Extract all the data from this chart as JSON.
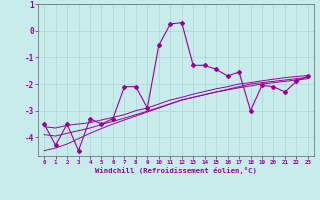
{
  "xlabel": "Windchill (Refroidissement éolien,°C)",
  "background_color": "#c8ecec",
  "grid_color": "#b0d8d8",
  "line_color": "#990099",
  "x_data": [
    0,
    1,
    2,
    3,
    4,
    5,
    6,
    7,
    8,
    9,
    10,
    11,
    12,
    13,
    14,
    15,
    16,
    17,
    18,
    19,
    20,
    21,
    22,
    23
  ],
  "y_main": [
    -3.5,
    -4.3,
    -3.5,
    -4.5,
    -3.3,
    -3.5,
    -3.3,
    -2.1,
    -2.1,
    -2.9,
    -0.55,
    0.25,
    0.3,
    -1.3,
    -1.3,
    -1.45,
    -1.7,
    -1.55,
    -3.0,
    -2.05,
    -2.1,
    -2.3,
    -1.9,
    -1.7
  ],
  "y_line1": [
    -3.6,
    -3.65,
    -3.55,
    -3.5,
    -3.45,
    -3.35,
    -3.25,
    -3.15,
    -3.0,
    -2.9,
    -2.75,
    -2.6,
    -2.5,
    -2.38,
    -2.28,
    -2.18,
    -2.1,
    -2.0,
    -1.95,
    -1.88,
    -1.82,
    -1.76,
    -1.72,
    -1.68
  ],
  "y_line2": [
    -3.9,
    -3.95,
    -3.85,
    -3.75,
    -3.65,
    -3.52,
    -3.4,
    -3.28,
    -3.15,
    -3.02,
    -2.88,
    -2.74,
    -2.6,
    -2.5,
    -2.4,
    -2.3,
    -2.22,
    -2.14,
    -2.07,
    -2.0,
    -1.95,
    -1.9,
    -1.85,
    -1.8
  ],
  "y_line3": [
    -4.5,
    -4.4,
    -4.25,
    -4.05,
    -3.85,
    -3.67,
    -3.5,
    -3.35,
    -3.2,
    -3.05,
    -2.9,
    -2.75,
    -2.6,
    -2.5,
    -2.4,
    -2.3,
    -2.2,
    -2.1,
    -2.0,
    -1.95,
    -1.9,
    -1.85,
    -1.8,
    -1.75
  ],
  "ylim": [
    -4.7,
    1.0
  ],
  "xlim": [
    -0.5,
    23.5
  ],
  "yticks": [
    1,
    0,
    -1,
    -2,
    -3,
    -4
  ],
  "xticks": [
    0,
    1,
    2,
    3,
    4,
    5,
    6,
    7,
    8,
    9,
    10,
    11,
    12,
    13,
    14,
    15,
    16,
    17,
    18,
    19,
    20,
    21,
    22,
    23
  ]
}
